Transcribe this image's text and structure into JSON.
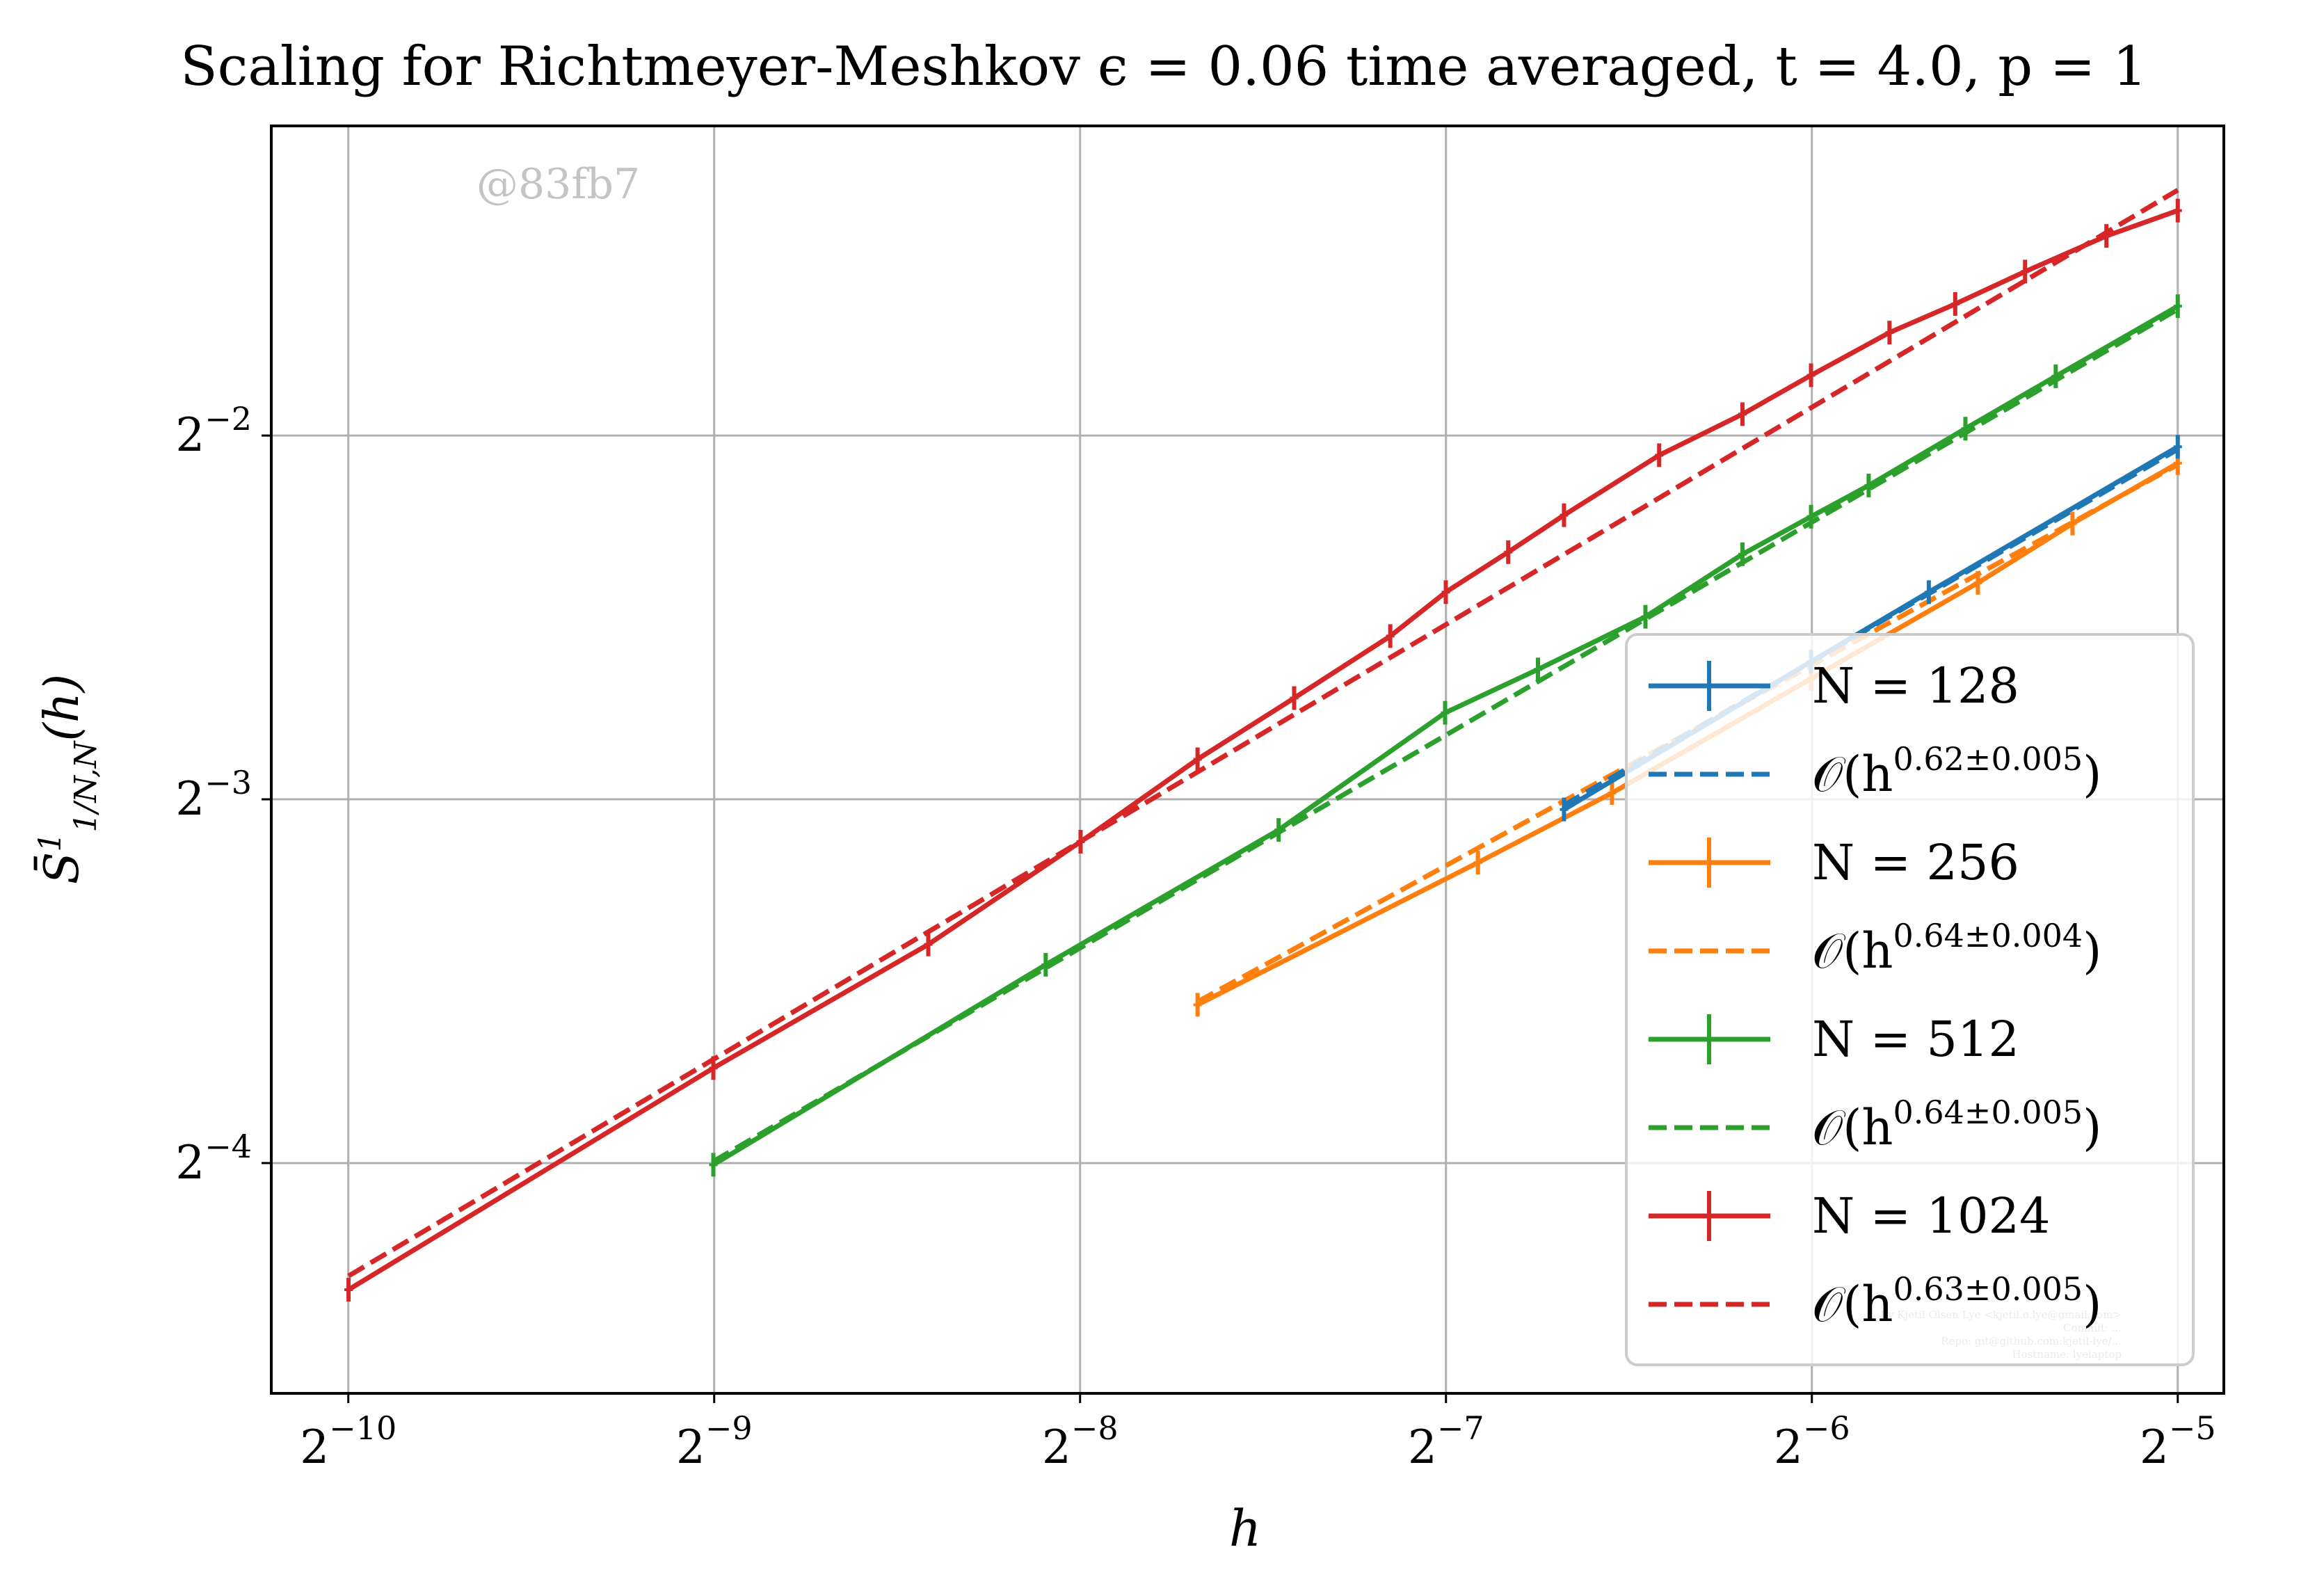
{
  "chart_data": {
    "type": "line",
    "title": "Scaling for Richtmeyer-Meshkov ϵ = 0.06 time averaged, t = 4.0, p = 1",
    "xlabel": "h",
    "ylabel": "S̄¹₁/N,N(h)",
    "x_scale": "log2",
    "y_scale": "log2",
    "xlim": [
      0.000844,
      0.0341
    ],
    "ylim": [
      0.0403,
      0.451
    ],
    "grid": true,
    "legend_position": "lower right",
    "x_ticks": [
      {
        "base": "2",
        "exp": "−10",
        "value": 0.0009765625
      },
      {
        "base": "2",
        "exp": "−9",
        "value": 0.001953125
      },
      {
        "base": "2",
        "exp": "−8",
        "value": 0.00390625
      },
      {
        "base": "2",
        "exp": "−7",
        "value": 0.0078125
      },
      {
        "base": "2",
        "exp": "−6",
        "value": 0.015625
      },
      {
        "base": "2",
        "exp": "−5",
        "value": 0.03125
      }
    ],
    "y_ticks": [
      {
        "base": "2",
        "exp": "−4",
        "value": 0.0625
      },
      {
        "base": "2",
        "exp": "−3",
        "value": 0.125
      },
      {
        "base": "2",
        "exp": "−2",
        "value": 0.25
      }
    ],
    "series": [
      {
        "name": "N = 128",
        "color": "#1f77b4",
        "style": "solid",
        "marker": "errorbar",
        "x": [
          0.00977,
          0.0156,
          0.0195,
          0.03125
        ],
        "y": [
          0.1226,
          0.1625,
          0.1855,
          0.2447
        ]
      },
      {
        "name": "O(h^{0.62±0.005})",
        "label_base": "𝒪(h",
        "label_exp": "0.62±0.005",
        "label_end": ")",
        "color": "#1f77b4",
        "style": "dashed",
        "x": [
          0.00977,
          0.03125
        ],
        "y": [
          0.1236,
          0.2435
        ]
      },
      {
        "name": "N = 256",
        "color": "#ff7f0e",
        "style": "solid",
        "marker": "errorbar",
        "x": [
          0.00488,
          0.0083,
          0.0107,
          0.0156,
          0.0214,
          0.0256,
          0.03125
        ],
        "y": [
          0.0845,
          0.1108,
          0.1265,
          0.1573,
          0.1888,
          0.2114,
          0.2372
        ]
      },
      {
        "name": "O(h^{0.64±0.004})",
        "label_base": "𝒪(h",
        "label_exp": "0.64±0.004",
        "label_end": ")",
        "color": "#ff7f0e",
        "style": "dashed",
        "x": [
          0.00488,
          0.03125
        ],
        "y": [
          0.085,
          0.2365
        ]
      },
      {
        "name": "N = 512",
        "color": "#2ca02c",
        "style": "solid",
        "marker": "errorbar",
        "x": [
          0.00195,
          0.00366,
          0.00569,
          0.0078,
          0.0093,
          0.0114,
          0.0137,
          0.0156,
          0.0174,
          0.0209,
          0.0248,
          0.03125
        ],
        "y": [
          0.0623,
          0.0912,
          0.1179,
          0.1474,
          0.1601,
          0.177,
          0.1994,
          0.2142,
          0.2273,
          0.2533,
          0.2799,
          0.3199
        ]
      },
      {
        "name": "O(h^{0.64±0.005})",
        "label_base": "𝒪(h",
        "label_exp": "0.64±0.005",
        "label_end": ")",
        "color": "#2ca02c",
        "style": "dashed",
        "x": [
          0.00195,
          0.03125
        ],
        "y": [
          0.0627,
          0.318
        ]
      },
      {
        "name": "N = 1024",
        "color": "#d62728",
        "style": "solid",
        "marker": "errorbar",
        "x": [
          0.000977,
          0.00195,
          0.00293,
          0.00391,
          0.00488,
          0.00586,
          0.00703,
          0.00781,
          0.00879,
          0.00977,
          0.0117,
          0.0137,
          0.0156,
          0.0181,
          0.0205,
          0.0234,
          0.0273,
          0.03125
        ],
        "y": [
          0.0491,
          0.0749,
          0.0948,
          0.1153,
          0.1349,
          0.1516,
          0.1706,
          0.1855,
          0.2002,
          0.2148,
          0.2408,
          0.2604,
          0.2804,
          0.3042,
          0.3212,
          0.3417,
          0.3657,
          0.3838
        ]
      },
      {
        "name": "O(h^{0.63±0.005})",
        "label_base": "𝒪(h",
        "label_exp": "0.63±0.005",
        "label_end": ")",
        "color": "#d62728",
        "style": "dashed",
        "x": [
          0.000977,
          0.03125
        ],
        "y": [
          0.0504,
          0.3991
        ]
      }
    ],
    "legend": [
      {
        "name": "N = 128",
        "color": "#1f77b4",
        "style": "solid"
      },
      {
        "name": "O(h^{0.62±0.005})",
        "label_base": "𝒪(h",
        "label_exp": "0.62±0.005",
        "label_end": ")",
        "color": "#1f77b4",
        "style": "dashed"
      },
      {
        "name": "N = 256",
        "color": "#ff7f0e",
        "style": "solid"
      },
      {
        "name": "O(h^{0.64±0.004})",
        "label_base": "𝒪(h",
        "label_exp": "0.64±0.004",
        "label_end": ")",
        "color": "#ff7f0e",
        "style": "dashed"
      },
      {
        "name": "N = 512",
        "color": "#2ca02c",
        "style": "solid"
      },
      {
        "name": "O(h^{0.64±0.005})",
        "label_base": "𝒪(h",
        "label_exp": "0.64±0.005",
        "label_end": ")",
        "color": "#2ca02c",
        "style": "dashed"
      },
      {
        "name": "N = 1024",
        "color": "#d62728",
        "style": "solid"
      },
      {
        "name": "O(h^{0.63±0.005})",
        "label_base": "𝒪(h",
        "label_exp": "0.63±0.005",
        "label_end": ")",
        "color": "#d62728",
        "style": "dashed"
      }
    ],
    "annotations": {
      "watermark": "@83fb7",
      "credits": [
        "By Kjetil Olsen Lye <kjetil.o.lye@gmail.com>",
        "Commit: ...",
        "Repo: git@github.com:kjetil-lye/...",
        "Hostname: lyelaptop"
      ]
    }
  }
}
